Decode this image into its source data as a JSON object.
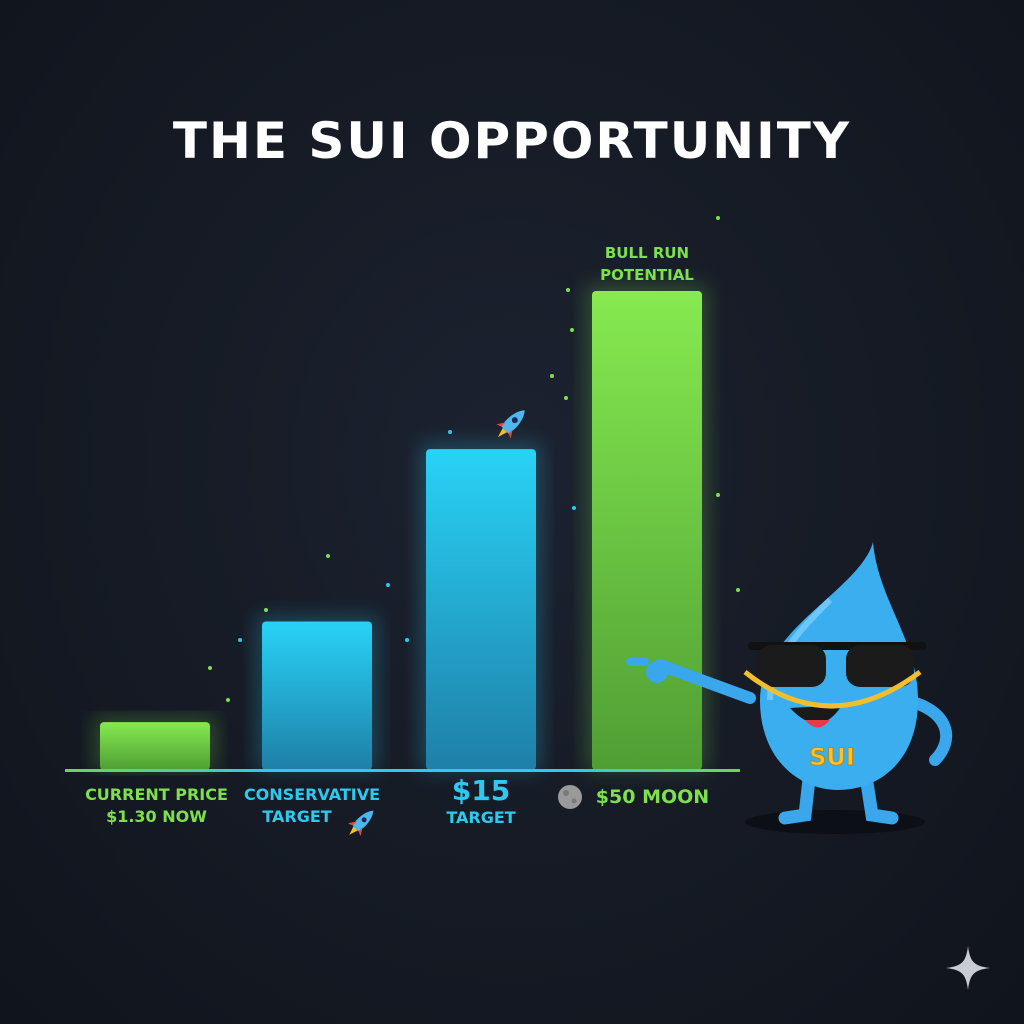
{
  "title": "THE SUI OPPORTUNITY",
  "colors": {
    "green": "#7ee04e",
    "cyan": "#2ec9f0",
    "background": "#151a24"
  },
  "chart_data": {
    "type": "bar",
    "title": "THE SUI OPPORTUNITY",
    "categories": [
      "CURRENT PRICE $1.30 NOW",
      "CONSERVATIVE TARGET",
      "$15 TARGET",
      "$50 MOON"
    ],
    "values": [
      1.3,
      null,
      15,
      50
    ],
    "bar_level": [
      0.1,
      0.31,
      0.67,
      1.0
    ],
    "colors": [
      "#7ee04e",
      "#2ec9f0",
      "#2ec9f0",
      "#7ee04e"
    ],
    "annotations": [
      "BULL RUN POTENTIAL"
    ],
    "grid": false
  },
  "labels": {
    "bar1_line1": "CURRENT PRICE",
    "bar1_line2": "$1.30 NOW",
    "bar2_line1": "CONSERVATIVE",
    "bar2_line2": "TARGET",
    "bar3_line1": "$15",
    "bar3_line2": "TARGET",
    "bar4": "$50 MOON",
    "bull_line1": "BULL RUN",
    "bull_line2": "POTENTIAL"
  },
  "icons": [
    "rocket-icon",
    "moon-icon",
    "sui-droplet-mascot",
    "sparkle-icon"
  ],
  "mascot_text": "SUI"
}
